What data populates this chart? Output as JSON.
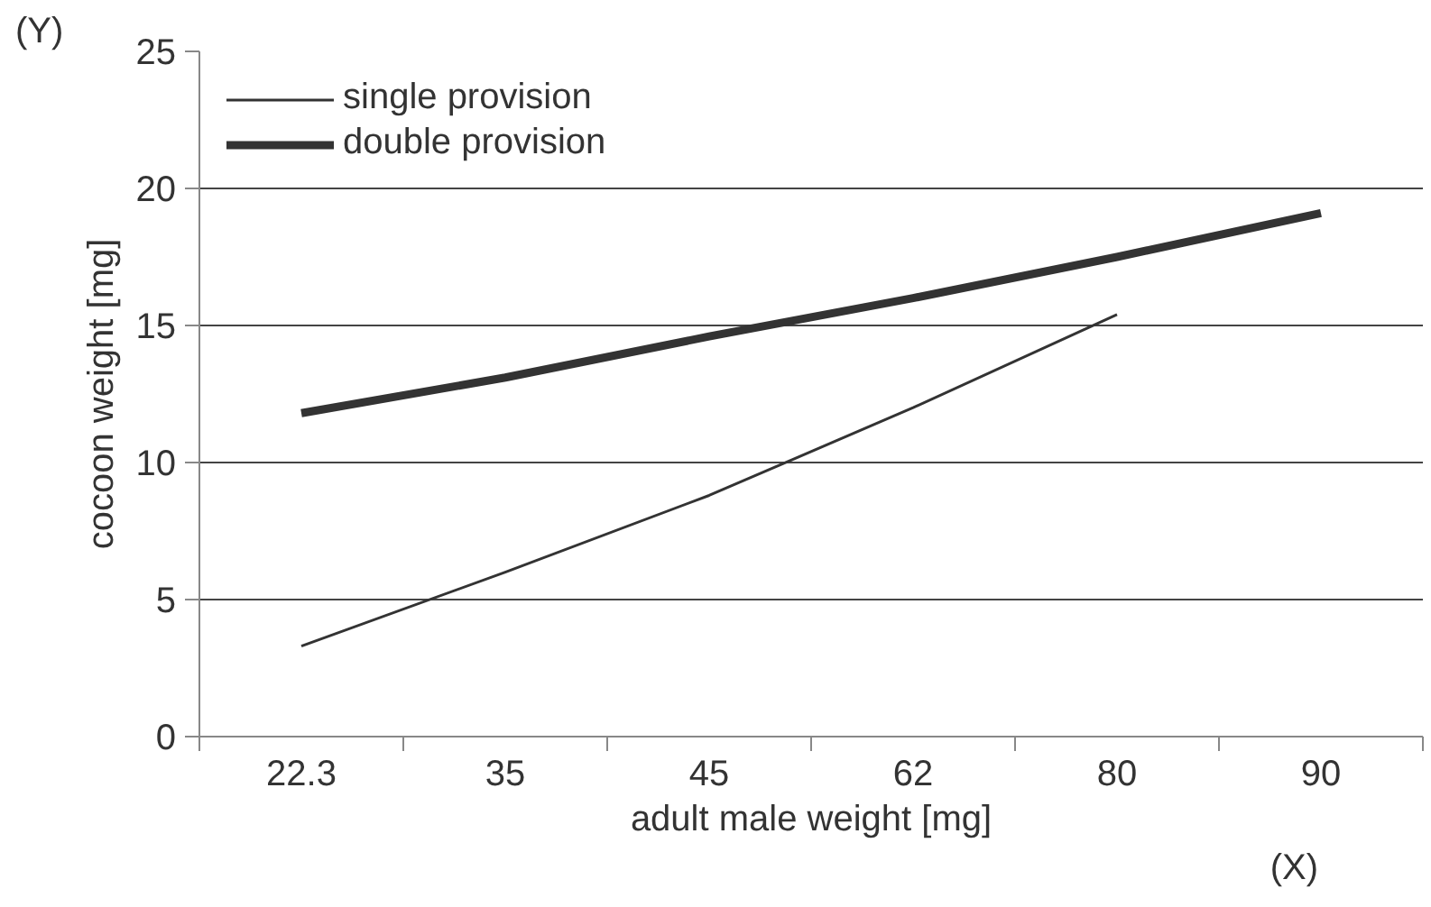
{
  "chart_data": {
    "type": "line",
    "xlabel": "adult male weight [mg]",
    "ylabel": "cocoon weight [mg]",
    "categories": [
      "22.3",
      "35",
      "45",
      "62",
      "80",
      "90"
    ],
    "series": [
      {
        "name": "single provision",
        "color": "#333333",
        "values": [
          3.3,
          6.0,
          8.8,
          12.0,
          15.4,
          null
        ]
      },
      {
        "name": "double provision",
        "color": "#333333",
        "values": [
          11.8,
          13.1,
          14.6,
          16.0,
          17.5,
          19.1
        ]
      }
    ],
    "ylim": [
      0,
      25
    ],
    "yticks": [
      0,
      5,
      10,
      15,
      20,
      25
    ],
    "grid": "y",
    "legend": "top left",
    "marker": "none",
    "annotations": [
      "(Y)",
      "(X)"
    ]
  }
}
